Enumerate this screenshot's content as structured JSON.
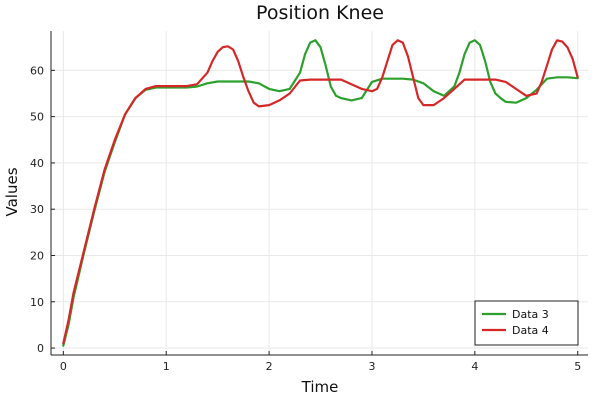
{
  "chart_data": {
    "type": "line",
    "title": "Position Knee",
    "xlabel": "Time",
    "ylabel": "Values",
    "xlim": [
      -0.12,
      5.1
    ],
    "ylim": [
      -1.5,
      68.5
    ],
    "xticks": [
      0,
      1,
      2,
      3,
      4,
      5
    ],
    "yticks": [
      0,
      10,
      20,
      30,
      40,
      50,
      60
    ],
    "grid": true,
    "legend_position": "bottom-right",
    "series": [
      {
        "name": "Data 3",
        "color": "#2ca02c",
        "x": [
          0,
          0.05,
          0.1,
          0.2,
          0.3,
          0.4,
          0.5,
          0.6,
          0.7,
          0.8,
          0.9,
          1.0,
          1.1,
          1.2,
          1.3,
          1.4,
          1.5,
          1.6,
          1.7,
          1.8,
          1.9,
          2.0,
          2.1,
          2.2,
          2.3,
          2.35,
          2.4,
          2.45,
          2.5,
          2.55,
          2.6,
          2.65,
          2.7,
          2.8,
          2.9,
          3.0,
          3.1,
          3.2,
          3.3,
          3.4,
          3.5,
          3.6,
          3.7,
          3.8,
          3.85,
          3.9,
          3.95,
          4.0,
          4.05,
          4.1,
          4.15,
          4.2,
          4.25,
          4.3,
          4.4,
          4.5,
          4.6,
          4.7,
          4.8,
          4.9,
          5.0
        ],
        "values": [
          0.5,
          5,
          11,
          20.5,
          29.5,
          38,
          44.5,
          50.5,
          54,
          55.8,
          56.3,
          56.3,
          56.3,
          56.3,
          56.5,
          57.2,
          57.6,
          57.6,
          57.6,
          57.6,
          57.2,
          56,
          55.5,
          56,
          59.5,
          63.5,
          66,
          66.5,
          65,
          61,
          56.5,
          54.5,
          54,
          53.5,
          54,
          57.5,
          58.2,
          58.2,
          58.2,
          58,
          57.2,
          55.5,
          54.5,
          56.5,
          59.5,
          63.5,
          66,
          66.5,
          65.5,
          62,
          57.5,
          55,
          54,
          53.2,
          53,
          54,
          55.8,
          58.2,
          58.5,
          58.5,
          58.3
        ]
      },
      {
        "name": "Data 4",
        "color": "#d62728",
        "x": [
          0,
          0.05,
          0.1,
          0.2,
          0.3,
          0.4,
          0.5,
          0.6,
          0.7,
          0.8,
          0.9,
          1.0,
          1.1,
          1.2,
          1.3,
          1.4,
          1.45,
          1.5,
          1.55,
          1.6,
          1.65,
          1.7,
          1.75,
          1.8,
          1.85,
          1.9,
          2.0,
          2.1,
          2.2,
          2.3,
          2.4,
          2.5,
          2.6,
          2.7,
          2.8,
          2.9,
          3.0,
          3.05,
          3.1,
          3.15,
          3.2,
          3.25,
          3.3,
          3.35,
          3.4,
          3.45,
          3.5,
          3.6,
          3.7,
          3.8,
          3.9,
          4.0,
          4.1,
          4.2,
          4.3,
          4.4,
          4.5,
          4.6,
          4.65,
          4.7,
          4.75,
          4.8,
          4.85,
          4.9,
          4.95,
          5.0
        ],
        "values": [
          1,
          6,
          12,
          21,
          30,
          38.5,
          45,
          50.5,
          54,
          56,
          56.6,
          56.6,
          56.6,
          56.6,
          57,
          59.5,
          62,
          64,
          65,
          65.2,
          64.5,
          62,
          58.5,
          55.5,
          53,
          52.2,
          52.5,
          53.5,
          55,
          57.8,
          58,
          58,
          58,
          58,
          57,
          56,
          55.5,
          56,
          58.5,
          62,
          65.5,
          66.5,
          66,
          63,
          58.5,
          54,
          52.5,
          52.5,
          54,
          56,
          58,
          58,
          58,
          58,
          57.5,
          56,
          54.5,
          55,
          57.5,
          61,
          64.5,
          66.5,
          66.2,
          65,
          62.5,
          58.5
        ]
      }
    ]
  }
}
